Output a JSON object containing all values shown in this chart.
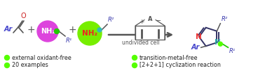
{
  "bg_color": "#ffffff",
  "bright_green": "#55ff00",
  "dark_blue": "#3333aa",
  "purple": "#dd44dd",
  "lime_green": "#77ee00",
  "gray": "#555555",
  "red": "#ee2222",
  "teal": "#33bbbb",
  "dark_green_node": "#22cc00",
  "bullet_texts_left": [
    "external oxidant-free",
    "20 examples"
  ],
  "bullet_texts_right": [
    "transition-metal-free",
    "[2+2+1] cyclization reaction"
  ],
  "undivided_cell_text": "undivided cell",
  "ketone_o_color": "#cc2222",
  "imidazole_n1_color": "#ee3333",
  "imidazole_n3_color": "#33aaaa",
  "imidazole_bond_color": "#333366",
  "ar_color": "#4444cc"
}
